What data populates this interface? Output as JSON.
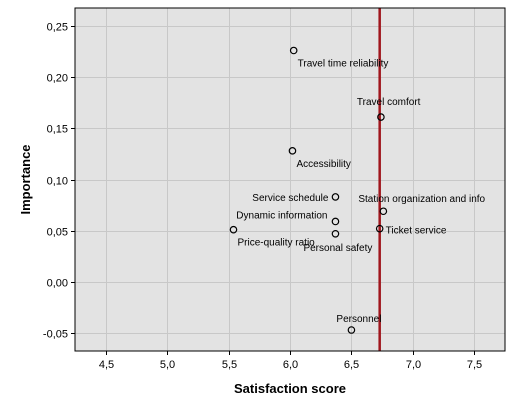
{
  "chart_data": {
    "type": "scatter",
    "title": "",
    "xlabel": "Satisfaction score",
    "ylabel": "Importance",
    "xlim": [
      4.25,
      7.75
    ],
    "ylim": [
      -0.0675,
      0.2675
    ],
    "xticks": [
      4.5,
      5.0,
      5.5,
      6.0,
      6.5,
      7.0,
      7.5
    ],
    "xtick_labels": [
      "4,5",
      "5,0",
      "5,5",
      "6,0",
      "6,5",
      "7,0",
      "7,5"
    ],
    "yticks": [
      -0.05,
      0.0,
      0.05,
      0.1,
      0.15,
      0.2,
      0.25
    ],
    "ytick_labels": [
      "-0,05",
      "0,00",
      "0,05",
      "0,10",
      "0,15",
      "0,20",
      "0,25"
    ],
    "grid": true,
    "background_color": "#e3e3e3",
    "reference_line": {
      "x": 6.73,
      "color": "#a0161d"
    },
    "points": [
      {
        "label": "Travel time reliability",
        "x": 6.03,
        "y": 0.226,
        "label_pos": "below-right"
      },
      {
        "label": "Travel comfort",
        "x": 6.74,
        "y": 0.161,
        "label_pos": "above-left"
      },
      {
        "label": "Accessibility",
        "x": 6.02,
        "y": 0.128,
        "label_pos": "below-right"
      },
      {
        "label": "Service schedule",
        "x": 6.37,
        "y": 0.083,
        "label_pos": "left"
      },
      {
        "label": "Station organization and info",
        "x": 6.76,
        "y": 0.069,
        "label_pos": "above-left2"
      },
      {
        "label": "Dynamic information",
        "x": 6.37,
        "y": 0.059,
        "label_pos": "left-above"
      },
      {
        "label": "Ticket service",
        "x": 6.73,
        "y": 0.052,
        "label_pos": "right"
      },
      {
        "label": "Personal safety",
        "x": 6.37,
        "y": 0.047,
        "label_pos": "below"
      },
      {
        "label": "Price-quality ratio",
        "x": 5.54,
        "y": 0.051,
        "label_pos": "below-right"
      },
      {
        "label": "Personnel",
        "x": 6.5,
        "y": -0.047,
        "label_pos": "above"
      }
    ]
  }
}
